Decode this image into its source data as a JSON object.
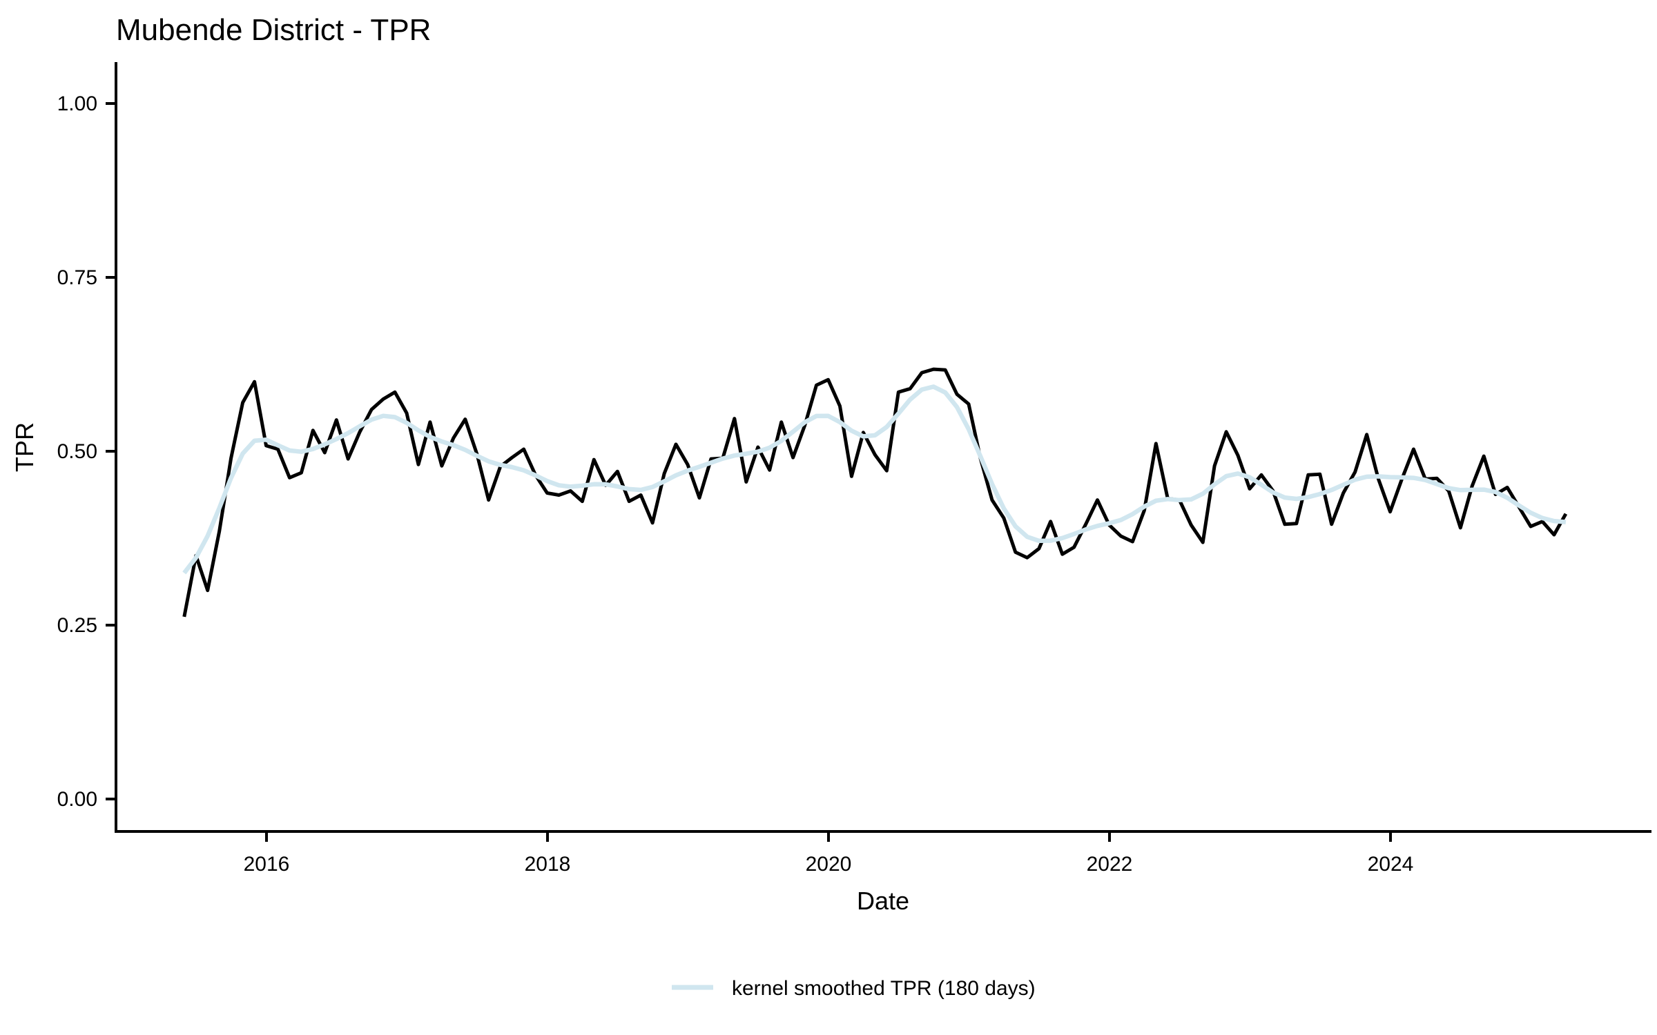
{
  "title": "Mubende District - TPR",
  "axes": {
    "x_label": "Date",
    "y_label": "TPR",
    "x_ticks": [
      "2016",
      "2018",
      "2020",
      "2022",
      "2024"
    ],
    "x_tick_years": [
      2016,
      2018,
      2020,
      2022,
      2024
    ],
    "y_ticks": [
      "1.00",
      "0.75",
      "0.50",
      "0.25",
      "0.00"
    ],
    "y_tick_values": [
      1.0,
      0.75,
      0.5,
      0.25,
      0.0
    ]
  },
  "legend": {
    "label": "kernel smoothed TPR (180 days)"
  },
  "colors": {
    "tpr_line": "#000000",
    "smoothed_line": "#d0e6ef",
    "axis": "#000000",
    "text": "#000000"
  },
  "chart_data": {
    "type": "line",
    "title": "Mubende District - TPR",
    "xlabel": "Date",
    "ylabel": "TPR",
    "ylim": [
      0.0,
      1.0
    ],
    "x_start_month": "2015-06",
    "x_end_month": "2025-04",
    "frequency": "monthly",
    "grid": false,
    "legend_position": "bottom",
    "smoothing_bandwidth_days": 180,
    "series": [
      {
        "name": "TPR",
        "color": "#000000",
        "values": [
          0.262,
          0.35,
          0.3,
          0.385,
          0.49,
          0.57,
          0.6,
          0.508,
          0.503,
          0.462,
          0.469,
          0.53,
          0.498,
          0.545,
          0.489,
          0.528,
          0.56,
          0.575,
          0.585,
          0.555,
          0.481,
          0.542,
          0.479,
          0.519,
          0.546,
          0.496,
          0.43,
          0.478,
          0.491,
          0.503,
          0.466,
          0.44,
          0.437,
          0.443,
          0.428,
          0.488,
          0.451,
          0.471,
          0.428,
          0.437,
          0.397,
          0.468,
          0.51,
          0.481,
          0.433,
          0.489,
          0.49,
          0.547,
          0.456,
          0.506,
          0.473,
          0.542,
          0.491,
          0.537,
          0.595,
          0.603,
          0.565,
          0.464,
          0.527,
          0.495,
          0.472,
          0.585,
          0.59,
          0.613,
          0.618,
          0.617,
          0.582,
          0.568,
          0.49,
          0.43,
          0.404,
          0.355,
          0.347,
          0.36,
          0.399,
          0.352,
          0.362,
          0.395,
          0.43,
          0.394,
          0.378,
          0.37,
          0.415,
          0.511,
          0.432,
          0.43,
          0.394,
          0.369,
          0.479,
          0.528,
          0.494,
          0.446,
          0.466,
          0.443,
          0.395,
          0.396,
          0.466,
          0.467,
          0.395,
          0.44,
          0.47,
          0.524,
          0.46,
          0.413,
          0.46,
          0.503,
          0.46,
          0.461,
          0.443,
          0.39,
          0.45,
          0.493,
          0.438,
          0.448,
          0.42,
          0.392,
          0.399,
          0.38,
          0.41
        ]
      },
      {
        "name": "kernel smoothed TPR (180 days)",
        "color": "#d0e6ef",
        "derived_from": "TPR",
        "method": "gaussian kernel smoothing, bandwidth 180 days"
      }
    ]
  }
}
